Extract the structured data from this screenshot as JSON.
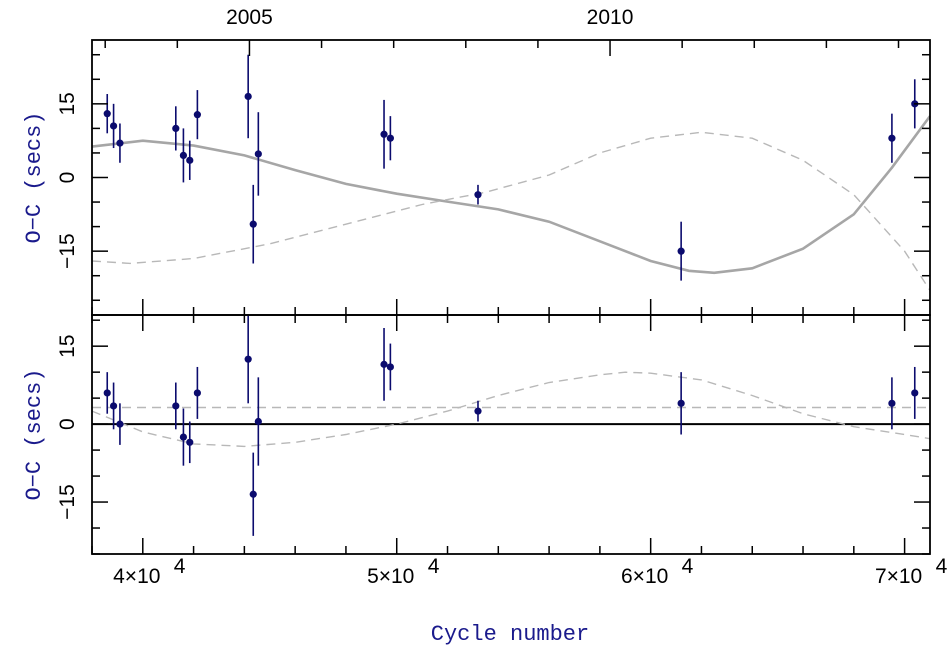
{
  "colors": {
    "points": "#0b0b6e",
    "model_line": "#a6a6a6",
    "dashed_line": "#b8b8b8",
    "axis_text": "#1a1a8c",
    "frame": "#000000"
  },
  "chart_data": [
    {
      "type": "scatter",
      "panel": "top",
      "title": "",
      "xlabel": "",
      "ylabel": "O−C (secs)",
      "xlim": [
        38000,
        71000
      ],
      "ylim": [
        -28,
        28
      ],
      "top_axis": {
        "label": "",
        "ticks": [
          {
            "x": 44200,
            "label": "2005"
          },
          {
            "x": 58400,
            "label": "2010"
          }
        ]
      },
      "yticks": [
        {
          "y": 15,
          "label": "15"
        },
        {
          "y": 0,
          "label": "0"
        },
        {
          "y": -15,
          "label": "−15"
        }
      ],
      "grid": false,
      "series": [
        {
          "kind": "errorbar",
          "points": [
            {
              "x": 38600,
              "y": 13,
              "err": 4
            },
            {
              "x": 38850,
              "y": 10.5,
              "err": 4.5
            },
            {
              "x": 39100,
              "y": 7,
              "err": 4
            },
            {
              "x": 41300,
              "y": 10,
              "err": 4.5
            },
            {
              "x": 41600,
              "y": 4.5,
              "err": 5.5
            },
            {
              "x": 41850,
              "y": 3.5,
              "err": 4
            },
            {
              "x": 42150,
              "y": 12.8,
              "err": 5
            },
            {
              "x": 44150,
              "y": 16.5,
              "err": 8.5
            },
            {
              "x": 44350,
              "y": -9.5,
              "err": 8
            },
            {
              "x": 44550,
              "y": 4.8,
              "err": 8.5
            },
            {
              "x": 49500,
              "y": 8.8,
              "err": 7
            },
            {
              "x": 49750,
              "y": 8,
              "err": 4.5
            },
            {
              "x": 53200,
              "y": -3.5,
              "err": 2
            },
            {
              "x": 61200,
              "y": -15,
              "err": 6
            },
            {
              "x": 69500,
              "y": 8,
              "err": 5
            },
            {
              "x": 70400,
              "y": 15,
              "err": 5
            }
          ]
        },
        {
          "kind": "solid-curve",
          "points": [
            {
              "x": 38000,
              "y": 6.3
            },
            {
              "x": 40000,
              "y": 7.5
            },
            {
              "x": 42000,
              "y": 6.5
            },
            {
              "x": 44000,
              "y": 4.5
            },
            {
              "x": 46000,
              "y": 1.5
            },
            {
              "x": 48000,
              "y": -1.3
            },
            {
              "x": 50000,
              "y": -3.3
            },
            {
              "x": 52000,
              "y": -4.9
            },
            {
              "x": 54000,
              "y": -6.5
            },
            {
              "x": 56000,
              "y": -9
            },
            {
              "x": 58000,
              "y": -13
            },
            {
              "x": 60000,
              "y": -17
            },
            {
              "x": 61500,
              "y": -19
            },
            {
              "x": 62500,
              "y": -19.4
            },
            {
              "x": 64000,
              "y": -18.5
            },
            {
              "x": 66000,
              "y": -14.5
            },
            {
              "x": 68000,
              "y": -7.5
            },
            {
              "x": 69500,
              "y": 2
            },
            {
              "x": 71000,
              "y": 12.5
            }
          ]
        },
        {
          "kind": "dashed-curve",
          "points": [
            {
              "x": 38000,
              "y": -17
            },
            {
              "x": 39500,
              "y": -17.5
            },
            {
              "x": 42000,
              "y": -16.5
            },
            {
              "x": 45000,
              "y": -13.5
            },
            {
              "x": 48000,
              "y": -9.5
            },
            {
              "x": 51000,
              "y": -5.5
            },
            {
              "x": 53500,
              "y": -3
            },
            {
              "x": 56000,
              "y": 0.5
            },
            {
              "x": 58000,
              "y": 5
            },
            {
              "x": 60000,
              "y": 8
            },
            {
              "x": 62000,
              "y": 9.2
            },
            {
              "x": 64000,
              "y": 8
            },
            {
              "x": 66000,
              "y": 3.5
            },
            {
              "x": 68000,
              "y": -3.5
            },
            {
              "x": 70000,
              "y": -15
            },
            {
              "x": 71000,
              "y": -23
            }
          ]
        }
      ]
    },
    {
      "type": "scatter",
      "panel": "bottom",
      "title": "",
      "xlabel": "Cycle number",
      "ylabel": "O−C (secs)",
      "xlim": [
        38000,
        71000
      ],
      "ylim": [
        -25,
        21
      ],
      "xticks": [
        {
          "x": 40000,
          "base": "4×10",
          "exp": "4"
        },
        {
          "x": 50000,
          "base": "5×10",
          "exp": "4"
        },
        {
          "x": 60000,
          "base": "6×10",
          "exp": "4"
        },
        {
          "x": 70000,
          "base": "7×10",
          "exp": "4"
        }
      ],
      "yticks": [
        {
          "y": 15,
          "label": "15"
        },
        {
          "y": 0,
          "label": "0"
        },
        {
          "y": -15,
          "label": "−15"
        }
      ],
      "grid": false,
      "zero_line": 0,
      "series": [
        {
          "kind": "errorbar",
          "points": [
            {
              "x": 38600,
              "y": 6,
              "err": 4
            },
            {
              "x": 38850,
              "y": 3.5,
              "err": 4.5
            },
            {
              "x": 39100,
              "y": 0,
              "err": 4
            },
            {
              "x": 41300,
              "y": 3.5,
              "err": 4.5
            },
            {
              "x": 41600,
              "y": -2.5,
              "err": 5.5
            },
            {
              "x": 41850,
              "y": -3.5,
              "err": 4
            },
            {
              "x": 42150,
              "y": 6,
              "err": 5
            },
            {
              "x": 44150,
              "y": 12.5,
              "err": 8.5
            },
            {
              "x": 44350,
              "y": -13.5,
              "err": 8
            },
            {
              "x": 44550,
              "y": 0.5,
              "err": 8.5
            },
            {
              "x": 49500,
              "y": 11.5,
              "err": 7
            },
            {
              "x": 49750,
              "y": 11,
              "err": 4.5
            },
            {
              "x": 53200,
              "y": 2.5,
              "err": 2
            },
            {
              "x": 61200,
              "y": 4,
              "err": 6
            },
            {
              "x": 69500,
              "y": 4,
              "err": 5
            },
            {
              "x": 70400,
              "y": 6,
              "err": 5
            }
          ]
        },
        {
          "kind": "dashed-line",
          "points": [
            {
              "x": 38000,
              "y": 3.2
            },
            {
              "x": 71000,
              "y": 3.2
            }
          ]
        },
        {
          "kind": "dashed-curve",
          "points": [
            {
              "x": 38000,
              "y": 2.5
            },
            {
              "x": 40000,
              "y": -1.5
            },
            {
              "x": 42000,
              "y": -3.8
            },
            {
              "x": 44000,
              "y": -4.3
            },
            {
              "x": 46000,
              "y": -3.5
            },
            {
              "x": 48000,
              "y": -2
            },
            {
              "x": 50000,
              "y": 0
            },
            {
              "x": 52000,
              "y": 2.5
            },
            {
              "x": 54000,
              "y": 5.5
            },
            {
              "x": 56000,
              "y": 8
            },
            {
              "x": 58000,
              "y": 9.5
            },
            {
              "x": 59000,
              "y": 10
            },
            {
              "x": 60000,
              "y": 9.8
            },
            {
              "x": 62000,
              "y": 8.5
            },
            {
              "x": 64000,
              "y": 5.5
            },
            {
              "x": 66000,
              "y": 2
            },
            {
              "x": 68000,
              "y": -0.5
            },
            {
              "x": 70000,
              "y": -2
            },
            {
              "x": 71000,
              "y": -2.8
            }
          ]
        }
      ]
    }
  ]
}
